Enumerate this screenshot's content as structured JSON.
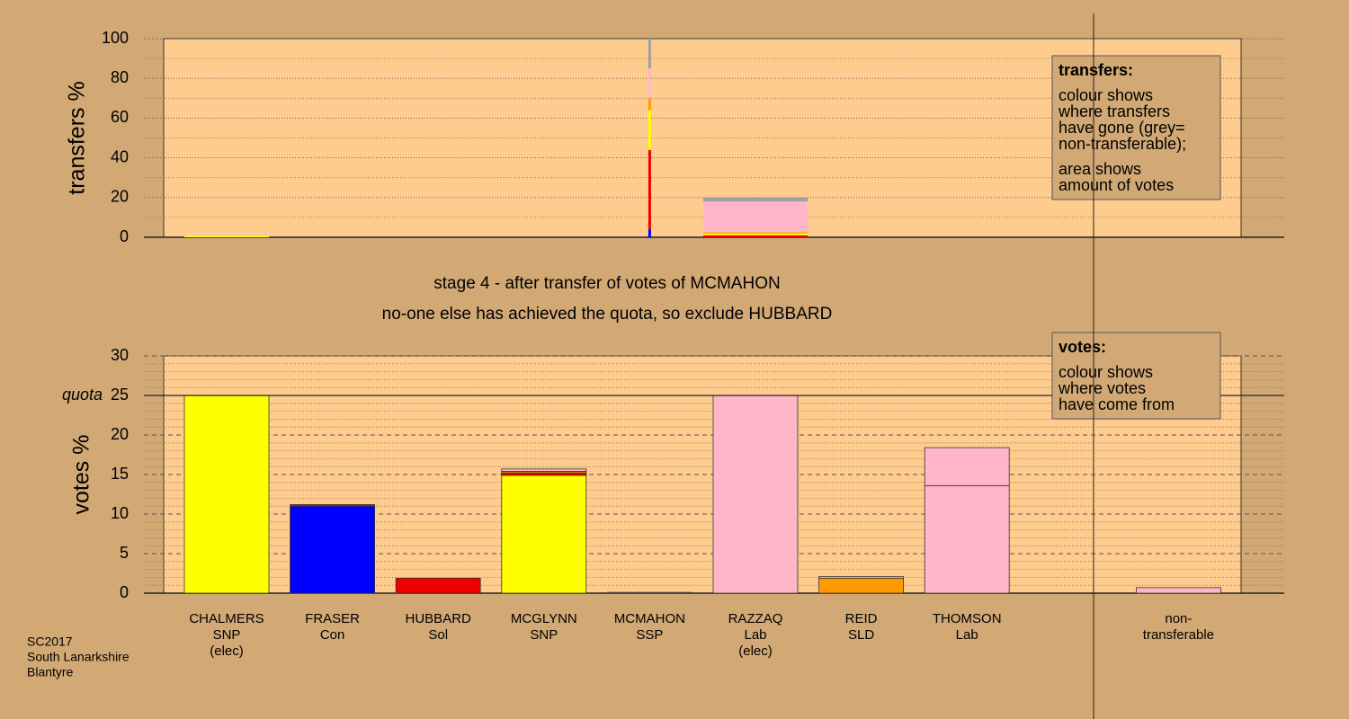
{
  "header": {
    "stage": "stage 4 - after transfer of votes of MCMAHON",
    "note": "no-one else has achieved the quota, so exclude HUBBARD"
  },
  "footer": [
    "SC2017",
    "South Lanarkshire",
    "Blantyre"
  ],
  "chart_data": [
    {
      "type": "bar",
      "stacked": true,
      "ylabel": "transfers %",
      "categories": [
        [
          "CHALMERS",
          "SNP",
          "(elec)"
        ],
        [
          "FRASER",
          "Con"
        ],
        [
          "HUBBARD",
          "Sol"
        ],
        [
          "MCGLYNN",
          "SNP"
        ],
        [
          "MCMAHON",
          "SSP"
        ],
        [
          "RAZZAQ",
          "Lab",
          "(elec)"
        ],
        [
          "REID",
          "SLD"
        ],
        [
          "THOMSON",
          "Lab"
        ],
        [
          "non-",
          "transferable"
        ]
      ],
      "ylim": [
        0,
        100
      ],
      "yticks": [
        0,
        20,
        40,
        60,
        80,
        100
      ],
      "minor_divisions": 2,
      "series": [
        {
          "color": "#0000FF",
          "values": [
            null,
            null,
            null,
            null,
            4,
            null,
            null,
            null,
            null
          ]
        },
        {
          "color": "#EE0000",
          "values": [
            null,
            null,
            null,
            null,
            40,
            1,
            null,
            null,
            null
          ]
        },
        {
          "color": "#FFFF00",
          "values": [
            0.5,
            null,
            null,
            null,
            20,
            1,
            null,
            null,
            null
          ]
        },
        {
          "color": "#FF9900",
          "values": [
            null,
            null,
            null,
            null,
            6,
            0.5,
            null,
            null,
            null
          ]
        },
        {
          "color": "#FFB6C8",
          "values": [
            null,
            null,
            null,
            null,
            15,
            15.5,
            null,
            null,
            null
          ]
        },
        {
          "color": "#A0A0A0",
          "values": [
            null,
            null,
            null,
            null,
            15,
            2,
            null,
            null,
            null
          ]
        }
      ],
      "legend": {
        "title": "transfers:",
        "paragraphs": [
          [
            "colour shows",
            "where transfers",
            "have gone (grey=",
            "non-transferable);"
          ],
          [
            "area shows",
            "amount of votes"
          ]
        ]
      }
    },
    {
      "type": "bar",
      "stacked": true,
      "ylabel": "votes %",
      "categories": [
        [
          "CHALMERS",
          "SNP",
          "(elec)"
        ],
        [
          "FRASER",
          "Con"
        ],
        [
          "HUBBARD",
          "Sol"
        ],
        [
          "MCGLYNN",
          "SNP"
        ],
        [
          "MCMAHON",
          "SSP"
        ],
        [
          "RAZZAQ",
          "Lab",
          "(elec)"
        ],
        [
          "REID",
          "SLD"
        ],
        [
          "THOMSON",
          "Lab"
        ],
        [
          "non-",
          "transferable"
        ]
      ],
      "ylim": [
        0,
        30
      ],
      "yticks": [
        0,
        5,
        10,
        15,
        20,
        25,
        30
      ],
      "minor_divisions": 5,
      "quota": {
        "value": 25,
        "label": "quota"
      },
      "series": [
        {
          "color": "#FFFF00",
          "values": [
            25,
            null,
            null,
            14.9,
            null,
            null,
            null,
            null,
            null
          ]
        },
        {
          "color": "#0000FF",
          "values": [
            null,
            11.0,
            null,
            null,
            null,
            null,
            null,
            null,
            null
          ]
        },
        {
          "color": "#EE0000",
          "values": [
            null,
            0.2,
            1.9,
            0.3,
            null,
            null,
            null,
            null,
            null
          ]
        },
        {
          "color": "#FF9900",
          "values": [
            null,
            null,
            null,
            0.2,
            null,
            null,
            1.9,
            null,
            null
          ]
        },
        {
          "color": "#FFB6C8",
          "values": [
            null,
            null,
            null,
            0.3,
            0.1,
            25,
            0.2,
            13.6,
            0.7
          ]
        },
        {
          "color": "#FFB6C8",
          "values": [
            null,
            null,
            null,
            null,
            null,
            null,
            null,
            4.8,
            null
          ]
        }
      ],
      "legend": {
        "title": "votes:",
        "paragraphs": [
          [
            "colour shows",
            "where votes",
            "have come from"
          ]
        ]
      }
    }
  ]
}
